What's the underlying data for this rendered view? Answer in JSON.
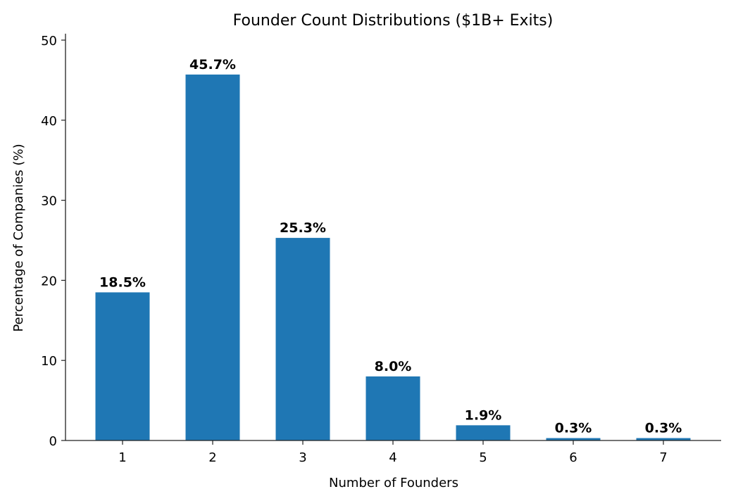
{
  "chart_data": {
    "type": "bar",
    "title": "Founder Count Distributions ($1B+ Exits)",
    "xlabel": "Number of Founders",
    "ylabel": "Percentage of Companies (%)",
    "categories": [
      "1",
      "2",
      "3",
      "4",
      "5",
      "6",
      "7"
    ],
    "values": [
      18.5,
      45.7,
      25.3,
      8.0,
      1.9,
      0.3,
      0.3
    ],
    "labels": [
      "18.5%",
      "45.7%",
      "25.3%",
      "8.0%",
      "1.9%",
      "0.3%",
      "0.3%"
    ],
    "ylim": [
      0,
      50.8
    ],
    "yticks": [
      0,
      10,
      20,
      30,
      40,
      50
    ],
    "grid": false,
    "bar_color": "#1f77b4"
  }
}
